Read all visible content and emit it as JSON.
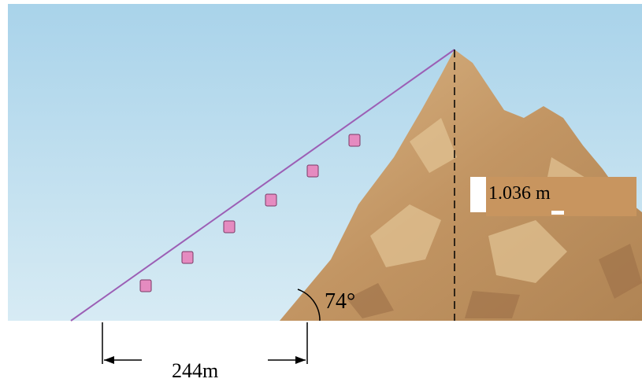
{
  "labels": {
    "height": "1.036 m",
    "angle": "74°",
    "distance": "244m"
  }
}
